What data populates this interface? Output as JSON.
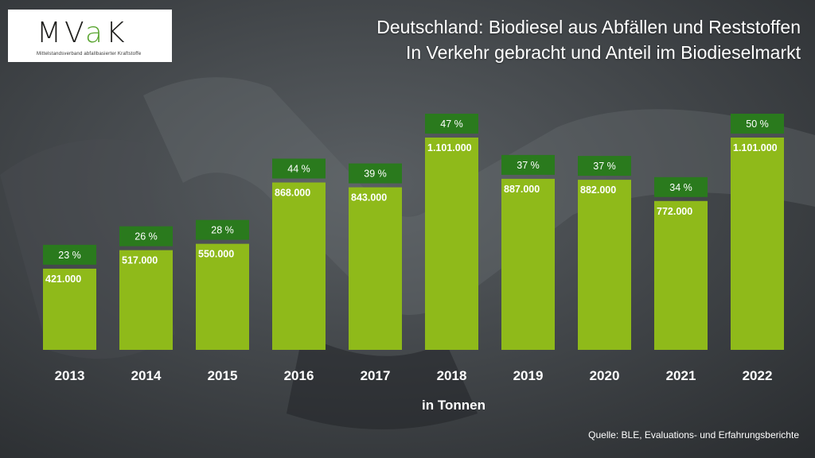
{
  "logo": {
    "name": "MVaK",
    "subtitle": "Mittelstandsverband abfallbasierter Kraftstoffe"
  },
  "title": {
    "line1": "Deutschland: Biodiesel aus Abfällen und Reststoffen",
    "line2": "In Verkehr gebracht und Anteil im Biodieselmarkt"
  },
  "unit_label": "in Tonnen",
  "source": "Quelle: BLE, Evaluations- und Erfahrungsberichte",
  "colors": {
    "bar": "#8fba1a",
    "share_box": "#2a7a1d",
    "logo_accent": "#5aa531"
  },
  "chart_data": {
    "type": "bar",
    "categories": [
      "2013",
      "2014",
      "2015",
      "2016",
      "2017",
      "2018",
      "2019",
      "2020",
      "2021",
      "2022"
    ],
    "series": [
      {
        "values": [
          421000,
          517000,
          550000,
          868000,
          843000,
          1101000,
          887000,
          882000,
          772000,
          1101000
        ],
        "labels": [
          "421.000",
          "517.000",
          "550.000",
          "868.000",
          "843.000",
          "1.101.000",
          "887.000",
          "882.000",
          "772.000",
          "1.101.000"
        ]
      },
      {
        "values": [
          23,
          26,
          28,
          44,
          39,
          47,
          37,
          37,
          34,
          50
        ],
        "labels": [
          "23 %",
          "26 %",
          "28 %",
          "44 %",
          "39 %",
          "47 %",
          "37 %",
          "37 %",
          "34 %",
          "50 %"
        ]
      }
    ],
    "ylim": [
      0,
      1101000
    ],
    "grid": false,
    "legend": "none"
  }
}
